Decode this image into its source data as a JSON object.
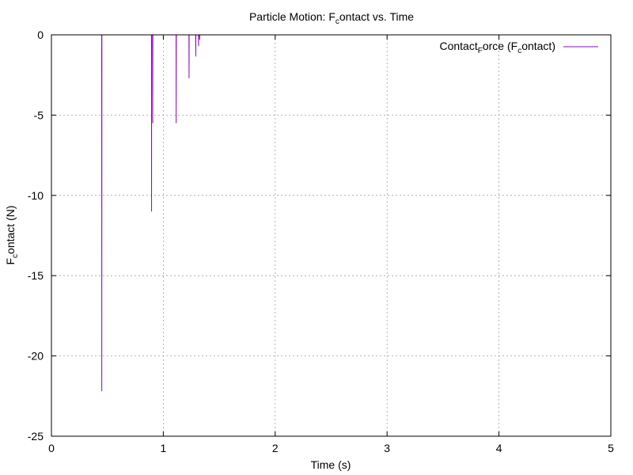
{
  "chart_data": {
    "type": "line",
    "title_parts": [
      "Particle Motion: F",
      "c",
      "ontact vs. Time"
    ],
    "xlabel": "Time (s)",
    "ylabel_parts": [
      "F",
      "c",
      "ontact (N)"
    ],
    "xlim": [
      0,
      5
    ],
    "ylim": [
      -25,
      0
    ],
    "xticks": [
      0,
      1,
      2,
      3,
      4,
      5
    ],
    "yticks": [
      0,
      -5,
      -10,
      -15,
      -20,
      -25
    ],
    "grid": true,
    "legend_position": "top-right",
    "series": [
      {
        "name_parts": [
          "Contact",
          "F",
          "orce (F",
          "c",
          "ontact)"
        ],
        "color": "#9400d3",
        "x": [
          0,
          0.449,
          0.45,
          0.451,
          0.894,
          0.895,
          0.896,
          0.904,
          0.905,
          0.906,
          1.114,
          1.115,
          1.116,
          1.229,
          1.23,
          1.231,
          1.289,
          1.29,
          1.291,
          1.314,
          1.315,
          1.316,
          1.324,
          1.325,
          1.326,
          5.0
        ],
        "y": [
          0,
          0,
          -22.2,
          0,
          0,
          -11.0,
          0,
          0,
          -5.5,
          0,
          0,
          -5.5,
          0,
          0,
          -2.7,
          0,
          0,
          -1.35,
          0,
          0,
          -0.7,
          0,
          0,
          -0.3,
          0,
          0
        ]
      }
    ]
  }
}
